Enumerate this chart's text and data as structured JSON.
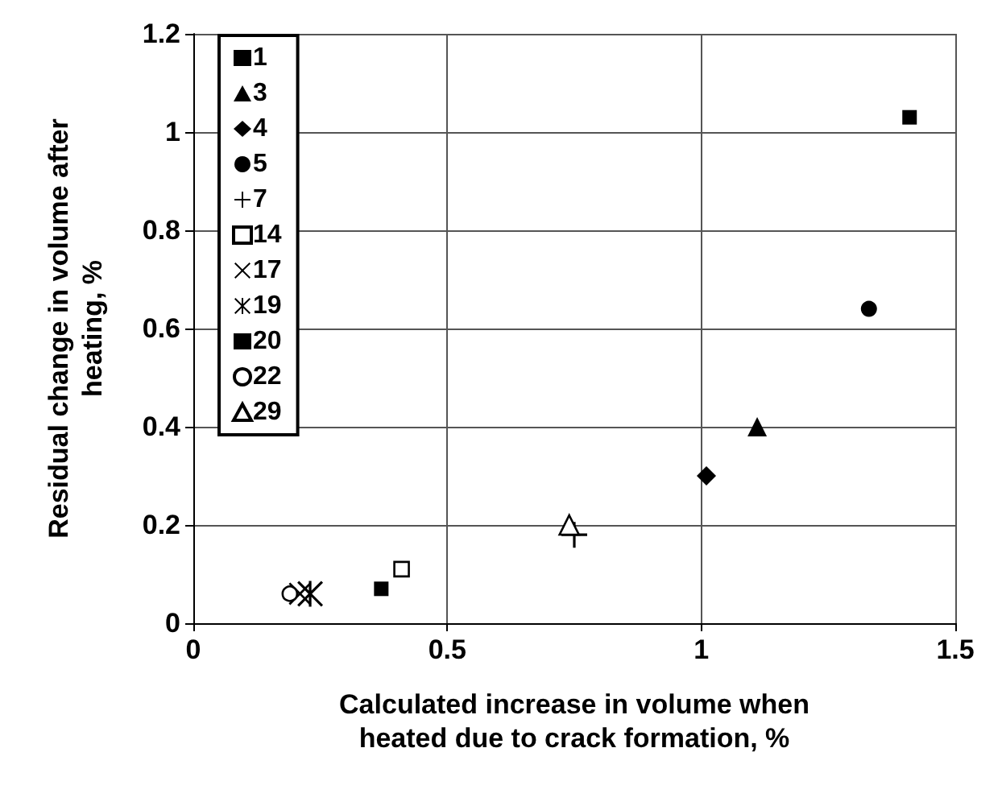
{
  "chart_data": {
    "type": "scatter",
    "xlabel": "Calculated increase in volume when\nheated due to crack formation, %",
    "ylabel": "Residual change in volume after\nheating, %",
    "xlim": [
      0,
      1.5
    ],
    "xticks": [
      0,
      0.5,
      1,
      1.5
    ],
    "ylim": [
      0,
      1.2
    ],
    "yticks": [
      0,
      0.2,
      0.4,
      0.6,
      0.8,
      1,
      1.2
    ],
    "grid": true,
    "legend": "top left",
    "series": [
      {
        "name": "1",
        "color": "#000000",
        "marker": "square",
        "x": [
          1.41
        ],
        "values": [
          1.03
        ]
      },
      {
        "name": "3",
        "color": "#000000",
        "marker": "triangle",
        "x": [
          1.11
        ],
        "values": [
          0.4
        ]
      },
      {
        "name": "4",
        "color": "#000000",
        "marker": "diamond",
        "x": [
          1.01
        ],
        "values": [
          0.3
        ]
      },
      {
        "name": "5",
        "color": "#000000",
        "marker": "circle",
        "x": [
          1.33
        ],
        "values": [
          0.64
        ]
      },
      {
        "name": "7",
        "color": "#000000",
        "marker": "plus",
        "x": [
          0.75
        ],
        "values": [
          0.18
        ]
      },
      {
        "name": "14",
        "color": "#000000",
        "marker": "square-open",
        "x": [
          0.41
        ],
        "values": [
          0.11
        ]
      },
      {
        "name": "17",
        "color": "#000000",
        "marker": "x",
        "x": [
          0.21
        ],
        "values": [
          0.06
        ]
      },
      {
        "name": "19",
        "color": "#000000",
        "marker": "asterisk",
        "x": [
          0.23
        ],
        "values": [
          0.06
        ]
      },
      {
        "name": "20",
        "color": "#000000",
        "marker": "square",
        "x": [
          0.37
        ],
        "values": [
          0.07
        ]
      },
      {
        "name": "22",
        "color": "#000000",
        "marker": "circle-open",
        "x": [
          0.19
        ],
        "values": [
          0.06
        ]
      },
      {
        "name": "29",
        "color": "#000000",
        "marker": "triangle-open",
        "x": [
          0.74
        ],
        "values": [
          0.2
        ]
      }
    ]
  }
}
